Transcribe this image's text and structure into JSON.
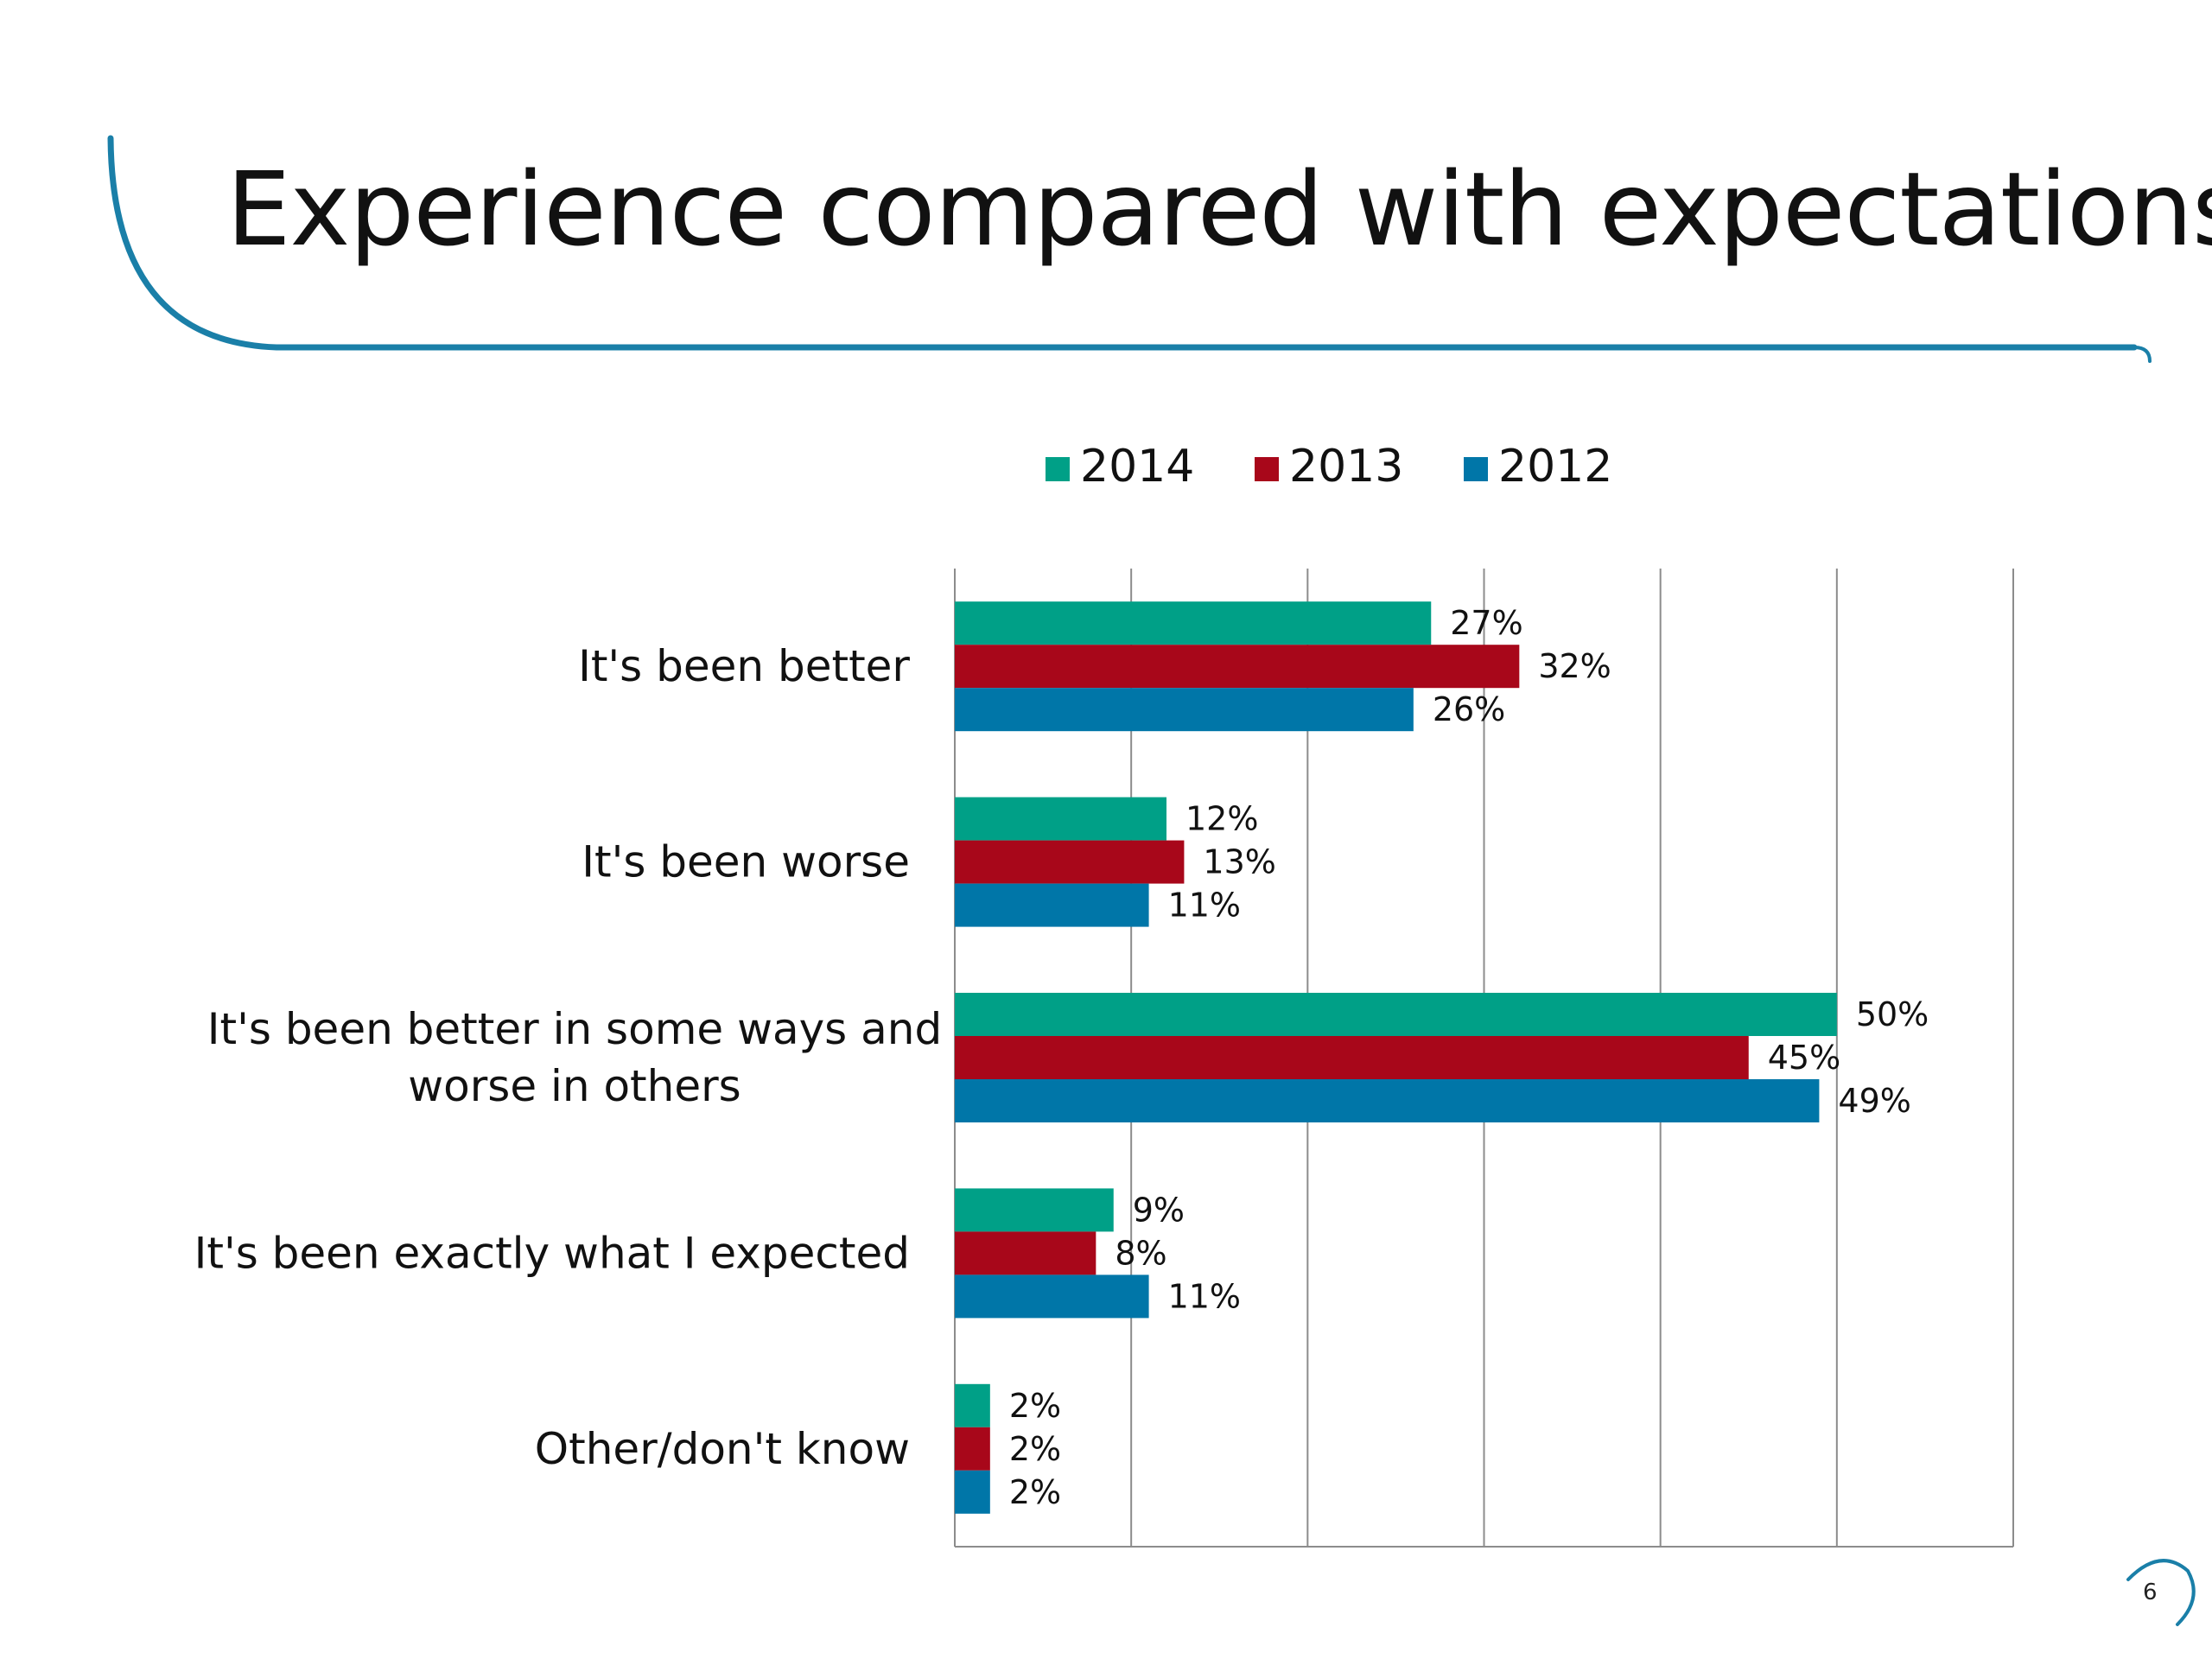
{
  "slide": {
    "title": "Experience compared with expectations",
    "page_number": "6",
    "accent_color": "#1a7fa8"
  },
  "chart_data": {
    "type": "bar",
    "orientation": "horizontal",
    "categories": [
      [
        "It's been better"
      ],
      [
        "It's been worse"
      ],
      [
        "It's been better in some ways and",
        "worse in others"
      ],
      [
        "It's been exactly what I expected"
      ],
      [
        "Other/don't know"
      ]
    ],
    "series": [
      {
        "name": "2014",
        "color": "#00a087",
        "values": [
          27,
          12,
          50,
          9,
          2
        ],
        "labels": [
          "27%",
          "12%",
          "50%",
          "9%",
          "2%"
        ]
      },
      {
        "name": "2013",
        "color": "#a8071a",
        "values": [
          32,
          13,
          45,
          8,
          2
        ],
        "labels": [
          "32%",
          "13%",
          "45%",
          "8%",
          "2%"
        ]
      },
      {
        "name": "2012",
        "color": "#0076a8",
        "values": [
          26,
          11,
          49,
          11,
          2
        ],
        "labels": [
          "26%",
          "11%",
          "49%",
          "11%",
          "2%"
        ]
      }
    ],
    "xlim": [
      0,
      60
    ],
    "gridline_step": 10,
    "grid": true,
    "legend_position": "top"
  }
}
